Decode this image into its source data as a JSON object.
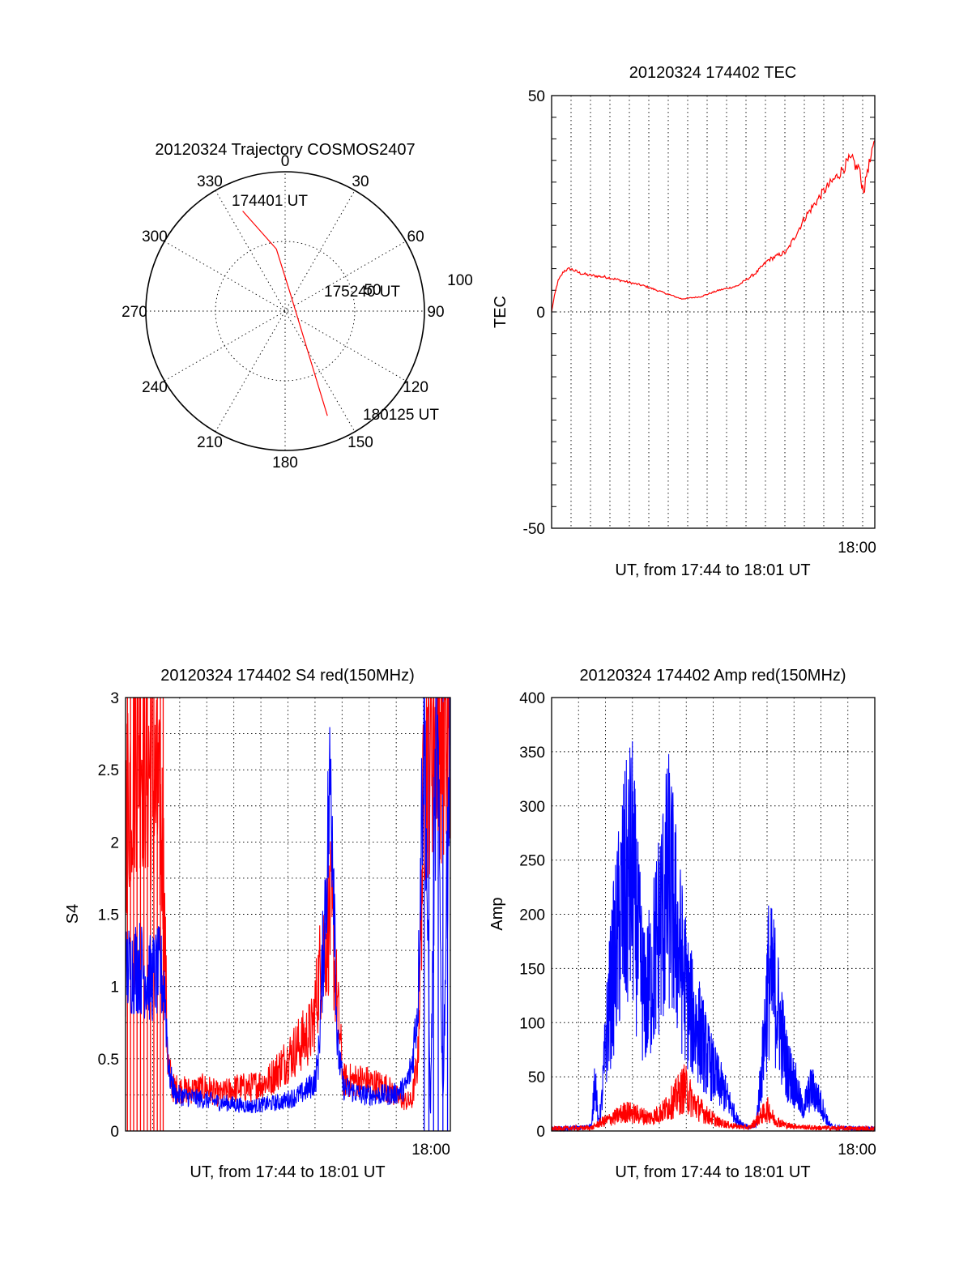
{
  "colors": {
    "red_series": "#ff0000",
    "blue_series": "#0000ff",
    "axes": "#000000"
  },
  "chart_data": [
    {
      "id": "trajectory",
      "type": "polar",
      "title": "20120324 Trajectory COSMOS2407",
      "angle_labels": [
        "0",
        "30",
        "60",
        "90",
        "120",
        "150",
        "180",
        "210",
        "240",
        "270",
        "300",
        "330"
      ],
      "radial_label": "50",
      "outer_label": "100",
      "rmax": 100,
      "track": {
        "color": "#ff0000",
        "points": [
          [
            337,
            78
          ],
          [
            352,
            45
          ],
          [
            20,
            12
          ],
          [
            142,
            20
          ],
          [
            155,
            51
          ],
          [
            158,
            81
          ]
        ]
      },
      "annotations": [
        {
          "text": "174401 UT",
          "anchor": "start"
        },
        {
          "text": "175240 UT",
          "anchor": "mid"
        },
        {
          "text": "180125 UT",
          "anchor": "end"
        }
      ]
    },
    {
      "id": "tec",
      "type": "line",
      "title": "20120324 174402 TEC",
      "ylabel": "TEC",
      "xlabel": "UT, from 17:44 to 18:01 UT",
      "xtick_label": "18:00",
      "xlim": [
        0,
        1044
      ],
      "ylim": [
        -50,
        50
      ],
      "yticks": [
        "-50",
        "0",
        "50"
      ],
      "series": [
        {
          "name": "TEC",
          "color": "#ff0000",
          "x": [
            0,
            10,
            20,
            40,
            60,
            90,
            120,
            180,
            240,
            300,
            360,
            420,
            480,
            540,
            600,
            660,
            700,
            760,
            820,
            880,
            930,
            960,
            975,
            985,
            992,
            1000,
            1010,
            1020,
            1030,
            1040,
            1044
          ],
          "y": [
            0,
            4,
            7,
            9.5,
            10,
            9,
            8.5,
            8,
            7,
            6,
            4.5,
            3,
            3.5,
            5,
            6,
            9,
            12,
            14,
            22,
            28,
            32,
            35,
            35,
            33,
            34,
            30,
            28,
            33,
            35,
            38,
            40
          ]
        }
      ]
    },
    {
      "id": "s4",
      "type": "line",
      "title": "20120324 174402 S4 red(150MHz)",
      "ylabel": "S4",
      "xlabel": "UT, from 17:44 to 18:01 UT",
      "xtick_label": "18:00",
      "xlim": [
        0,
        1044
      ],
      "ylim": [
        0,
        3
      ],
      "yticks": [
        "0",
        "0.5",
        "1",
        "1.5",
        "2",
        "2.5",
        "3"
      ],
      "series": [
        {
          "name": "blue",
          "color": "#0000ff",
          "x": [
            0,
            40,
            80,
            110,
            125,
            140,
            160,
            300,
            400,
            500,
            560,
            590,
            610,
            620,
            640,
            660,
            670,
            680,
            700,
            760,
            860,
            900,
            920,
            940,
            950,
            960,
            980,
            1000,
            1020,
            1044
          ],
          "y": [
            1.1,
            1.15,
            1.05,
            1.1,
            1.0,
            0.4,
            0.25,
            0.2,
            0.17,
            0.2,
            0.25,
            0.3,
            0.35,
            0.5,
            1.5,
            2.5,
            1.8,
            0.6,
            0.3,
            0.25,
            0.25,
            0.3,
            0.45,
            0.9,
            2.0,
            3.0,
            0.1,
            3.0,
            0.2,
            3.0
          ],
          "spikes": [
            960,
            975,
            990,
            1005,
            1020,
            1035
          ]
        },
        {
          "name": "red",
          "color": "#ff0000",
          "x": [
            0,
            40,
            80,
            120,
            135,
            150,
            200,
            260,
            300,
            360,
            400,
            460,
            520,
            560,
            600,
            630,
            660,
            680,
            700,
            760,
            840,
            880,
            920,
            940,
            960,
            1000,
            1044
          ],
          "y": [
            2.2,
            2.8,
            2.5,
            2.0,
            0.5,
            0.3,
            0.28,
            0.3,
            0.25,
            0.3,
            0.3,
            0.35,
            0.5,
            0.6,
            0.7,
            1.2,
            1.5,
            0.9,
            0.35,
            0.35,
            0.3,
            0.22,
            0.2,
            0.5,
            2.5,
            3.0,
            2.5
          ],
          "spikes": [
            6,
            16,
            26,
            37,
            48,
            59,
            70,
            80,
            91,
            102,
            112,
            121
          ]
        }
      ]
    },
    {
      "id": "amp",
      "type": "line",
      "title": "20120324 174402 Amp red(150MHz)",
      "ylabel": "Amp",
      "xlabel": "UT, from 17:44 to 18:01 UT",
      "xtick_label": "18:00",
      "xlim": [
        0,
        1044
      ],
      "ylim": [
        0,
        400
      ],
      "yticks": [
        "0",
        "50",
        "100",
        "150",
        "200",
        "250",
        "300",
        "350",
        "400"
      ],
      "series": [
        {
          "name": "blue",
          "color": "#0000ff",
          "x": [
            0,
            100,
            130,
            140,
            150,
            160,
            170,
            180,
            200,
            230,
            260,
            280,
            300,
            320,
            350,
            380,
            410,
            440,
            460,
            480,
            500,
            530,
            560,
            600,
            625,
            640,
            660,
            680,
            700,
            720,
            760,
            790,
            810,
            840,
            870,
            890,
            900,
            920,
            1044
          ],
          "y": [
            2,
            3,
            5,
            55,
            8,
            20,
            60,
            100,
            150,
            210,
            240,
            170,
            120,
            140,
            190,
            230,
            170,
            120,
            100,
            90,
            70,
            50,
            35,
            10,
            5,
            3,
            5,
            60,
            140,
            130,
            60,
            40,
            20,
            40,
            25,
            10,
            5,
            3,
            2
          ]
        },
        {
          "name": "red",
          "color": "#ff0000",
          "x": [
            0,
            130,
            160,
            200,
            240,
            280,
            320,
            360,
            400,
            430,
            460,
            500,
            540,
            580,
            640,
            680,
            700,
            720,
            760,
            840,
            1044
          ],
          "y": [
            2,
            3,
            8,
            12,
            18,
            15,
            12,
            18,
            30,
            40,
            25,
            15,
            8,
            5,
            3,
            15,
            20,
            10,
            5,
            3,
            2
          ]
        }
      ]
    }
  ]
}
